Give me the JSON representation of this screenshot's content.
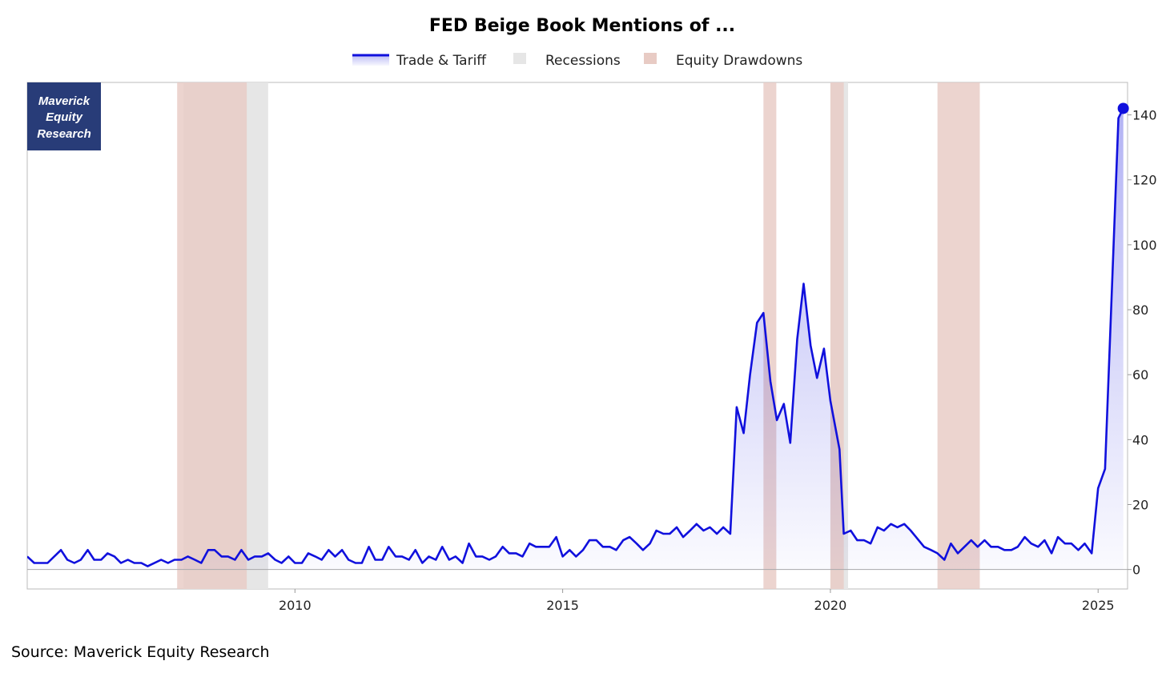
{
  "colors": {
    "line": "#1010dd",
    "recession": "#e6e6e6",
    "drawdown": "#e8cbc4",
    "logo_bg": "#283c78",
    "axis": "#bbbbbb"
  },
  "logo": {
    "lines": [
      "Maverick",
      "Equity",
      "Research"
    ]
  },
  "source": "Source: Maverick Equity Research",
  "chart_data": {
    "type": "line",
    "title": "FED Beige Book Mentions of ...",
    "xlabel": "",
    "ylabel": "",
    "xlim": [
      2005.0,
      2025.55
    ],
    "ylim": [
      -6,
      150
    ],
    "x_ticks": [
      2010,
      2015,
      2020,
      2025
    ],
    "y_ticks": [
      0,
      20,
      40,
      60,
      80,
      100,
      120,
      140
    ],
    "y_axis_position": "right",
    "grid": false,
    "legend": {
      "placement": "top-center",
      "items": [
        {
          "key": "trade",
          "label": "Trade & Tariff",
          "kind": "line"
        },
        {
          "key": "recession",
          "label": "Recessions",
          "kind": "box"
        },
        {
          "key": "drawdown",
          "label": "Equity Drawdowns",
          "kind": "box"
        }
      ]
    },
    "recessions": [
      [
        2007.92,
        2009.5
      ],
      [
        2020.0,
        2020.33
      ]
    ],
    "drawdowns": [
      [
        2007.8,
        2009.1
      ],
      [
        2018.75,
        2018.99
      ],
      [
        2020.0,
        2020.25
      ],
      [
        2022.0,
        2022.79
      ]
    ],
    "series": [
      {
        "name": "Trade & Tariff",
        "area_fill": true,
        "end_marker": true,
        "points": [
          [
            2005.0,
            4
          ],
          [
            2005.13,
            2
          ],
          [
            2005.38,
            2
          ],
          [
            2005.63,
            6
          ],
          [
            2005.75,
            3
          ],
          [
            2005.88,
            2
          ],
          [
            2006.0,
            3
          ],
          [
            2006.13,
            6
          ],
          [
            2006.25,
            3
          ],
          [
            2006.38,
            3
          ],
          [
            2006.5,
            5
          ],
          [
            2006.63,
            4
          ],
          [
            2006.75,
            2
          ],
          [
            2006.88,
            3
          ],
          [
            2007.0,
            2
          ],
          [
            2007.13,
            2
          ],
          [
            2007.25,
            1
          ],
          [
            2007.5,
            3
          ],
          [
            2007.63,
            2
          ],
          [
            2007.75,
            3
          ],
          [
            2007.88,
            3
          ],
          [
            2008.0,
            4
          ],
          [
            2008.13,
            3
          ],
          [
            2008.25,
            2
          ],
          [
            2008.38,
            6
          ],
          [
            2008.5,
            6
          ],
          [
            2008.63,
            4
          ],
          [
            2008.75,
            4
          ],
          [
            2008.88,
            3
          ],
          [
            2009.0,
            6
          ],
          [
            2009.13,
            3
          ],
          [
            2009.25,
            4
          ],
          [
            2009.38,
            4
          ],
          [
            2009.5,
            5
          ],
          [
            2009.63,
            3
          ],
          [
            2009.75,
            2
          ],
          [
            2009.88,
            4
          ],
          [
            2010.0,
            2
          ],
          [
            2010.13,
            2
          ],
          [
            2010.25,
            5
          ],
          [
            2010.38,
            4
          ],
          [
            2010.5,
            3
          ],
          [
            2010.63,
            6
          ],
          [
            2010.75,
            4
          ],
          [
            2010.88,
            6
          ],
          [
            2011.0,
            3
          ],
          [
            2011.13,
            2
          ],
          [
            2011.25,
            2
          ],
          [
            2011.38,
            7
          ],
          [
            2011.5,
            3
          ],
          [
            2011.63,
            3
          ],
          [
            2011.75,
            7
          ],
          [
            2011.88,
            4
          ],
          [
            2012.0,
            4
          ],
          [
            2012.13,
            3
          ],
          [
            2012.25,
            6
          ],
          [
            2012.38,
            2
          ],
          [
            2012.5,
            4
          ],
          [
            2012.63,
            3
          ],
          [
            2012.75,
            7
          ],
          [
            2012.88,
            3
          ],
          [
            2013.0,
            4
          ],
          [
            2013.13,
            2
          ],
          [
            2013.25,
            8
          ],
          [
            2013.38,
            4
          ],
          [
            2013.5,
            4
          ],
          [
            2013.63,
            3
          ],
          [
            2013.75,
            4
          ],
          [
            2013.88,
            7
          ],
          [
            2014.0,
            5
          ],
          [
            2014.13,
            5
          ],
          [
            2014.25,
            4
          ],
          [
            2014.38,
            8
          ],
          [
            2014.5,
            7
          ],
          [
            2014.63,
            7
          ],
          [
            2014.75,
            7
          ],
          [
            2014.88,
            10
          ],
          [
            2015.0,
            4
          ],
          [
            2015.13,
            6
          ],
          [
            2015.25,
            4
          ],
          [
            2015.38,
            6
          ],
          [
            2015.5,
            9
          ],
          [
            2015.63,
            9
          ],
          [
            2015.75,
            7
          ],
          [
            2015.88,
            7
          ],
          [
            2016.0,
            6
          ],
          [
            2016.13,
            9
          ],
          [
            2016.25,
            10
          ],
          [
            2016.38,
            8
          ],
          [
            2016.5,
            6
          ],
          [
            2016.63,
            8
          ],
          [
            2016.75,
            12
          ],
          [
            2016.88,
            11
          ],
          [
            2017.0,
            11
          ],
          [
            2017.13,
            13
          ],
          [
            2017.25,
            10
          ],
          [
            2017.38,
            12
          ],
          [
            2017.5,
            14
          ],
          [
            2017.63,
            12
          ],
          [
            2017.75,
            13
          ],
          [
            2017.88,
            11
          ],
          [
            2018.0,
            13
          ],
          [
            2018.13,
            11
          ],
          [
            2018.25,
            50
          ],
          [
            2018.38,
            42
          ],
          [
            2018.5,
            60
          ],
          [
            2018.63,
            76
          ],
          [
            2018.75,
            79
          ],
          [
            2018.88,
            58
          ],
          [
            2019.0,
            46
          ],
          [
            2019.13,
            51
          ],
          [
            2019.25,
            39
          ],
          [
            2019.38,
            71
          ],
          [
            2019.5,
            88
          ],
          [
            2019.63,
            69
          ],
          [
            2019.75,
            59
          ],
          [
            2019.88,
            68
          ],
          [
            2020.0,
            52
          ],
          [
            2020.17,
            37
          ],
          [
            2020.25,
            11
          ],
          [
            2020.38,
            12
          ],
          [
            2020.5,
            9
          ],
          [
            2020.63,
            9
          ],
          [
            2020.75,
            8
          ],
          [
            2020.88,
            13
          ],
          [
            2021.0,
            12
          ],
          [
            2021.13,
            14
          ],
          [
            2021.25,
            13
          ],
          [
            2021.38,
            14
          ],
          [
            2021.5,
            12
          ],
          [
            2021.75,
            7
          ],
          [
            2021.88,
            6
          ],
          [
            2022.0,
            5
          ],
          [
            2022.13,
            3
          ],
          [
            2022.25,
            8
          ],
          [
            2022.38,
            5
          ],
          [
            2022.63,
            9
          ],
          [
            2022.75,
            7
          ],
          [
            2022.88,
            9
          ],
          [
            2023.0,
            7
          ],
          [
            2023.13,
            7
          ],
          [
            2023.25,
            6
          ],
          [
            2023.38,
            6
          ],
          [
            2023.5,
            7
          ],
          [
            2023.63,
            10
          ],
          [
            2023.75,
            8
          ],
          [
            2023.88,
            7
          ],
          [
            2024.0,
            9
          ],
          [
            2024.13,
            5
          ],
          [
            2024.25,
            10
          ],
          [
            2024.38,
            8
          ],
          [
            2024.5,
            8
          ],
          [
            2024.63,
            6
          ],
          [
            2024.75,
            8
          ],
          [
            2024.88,
            5
          ],
          [
            2025.0,
            25
          ],
          [
            2025.13,
            31
          ],
          [
            2025.38,
            139
          ],
          [
            2025.47,
            142
          ]
        ]
      }
    ]
  }
}
